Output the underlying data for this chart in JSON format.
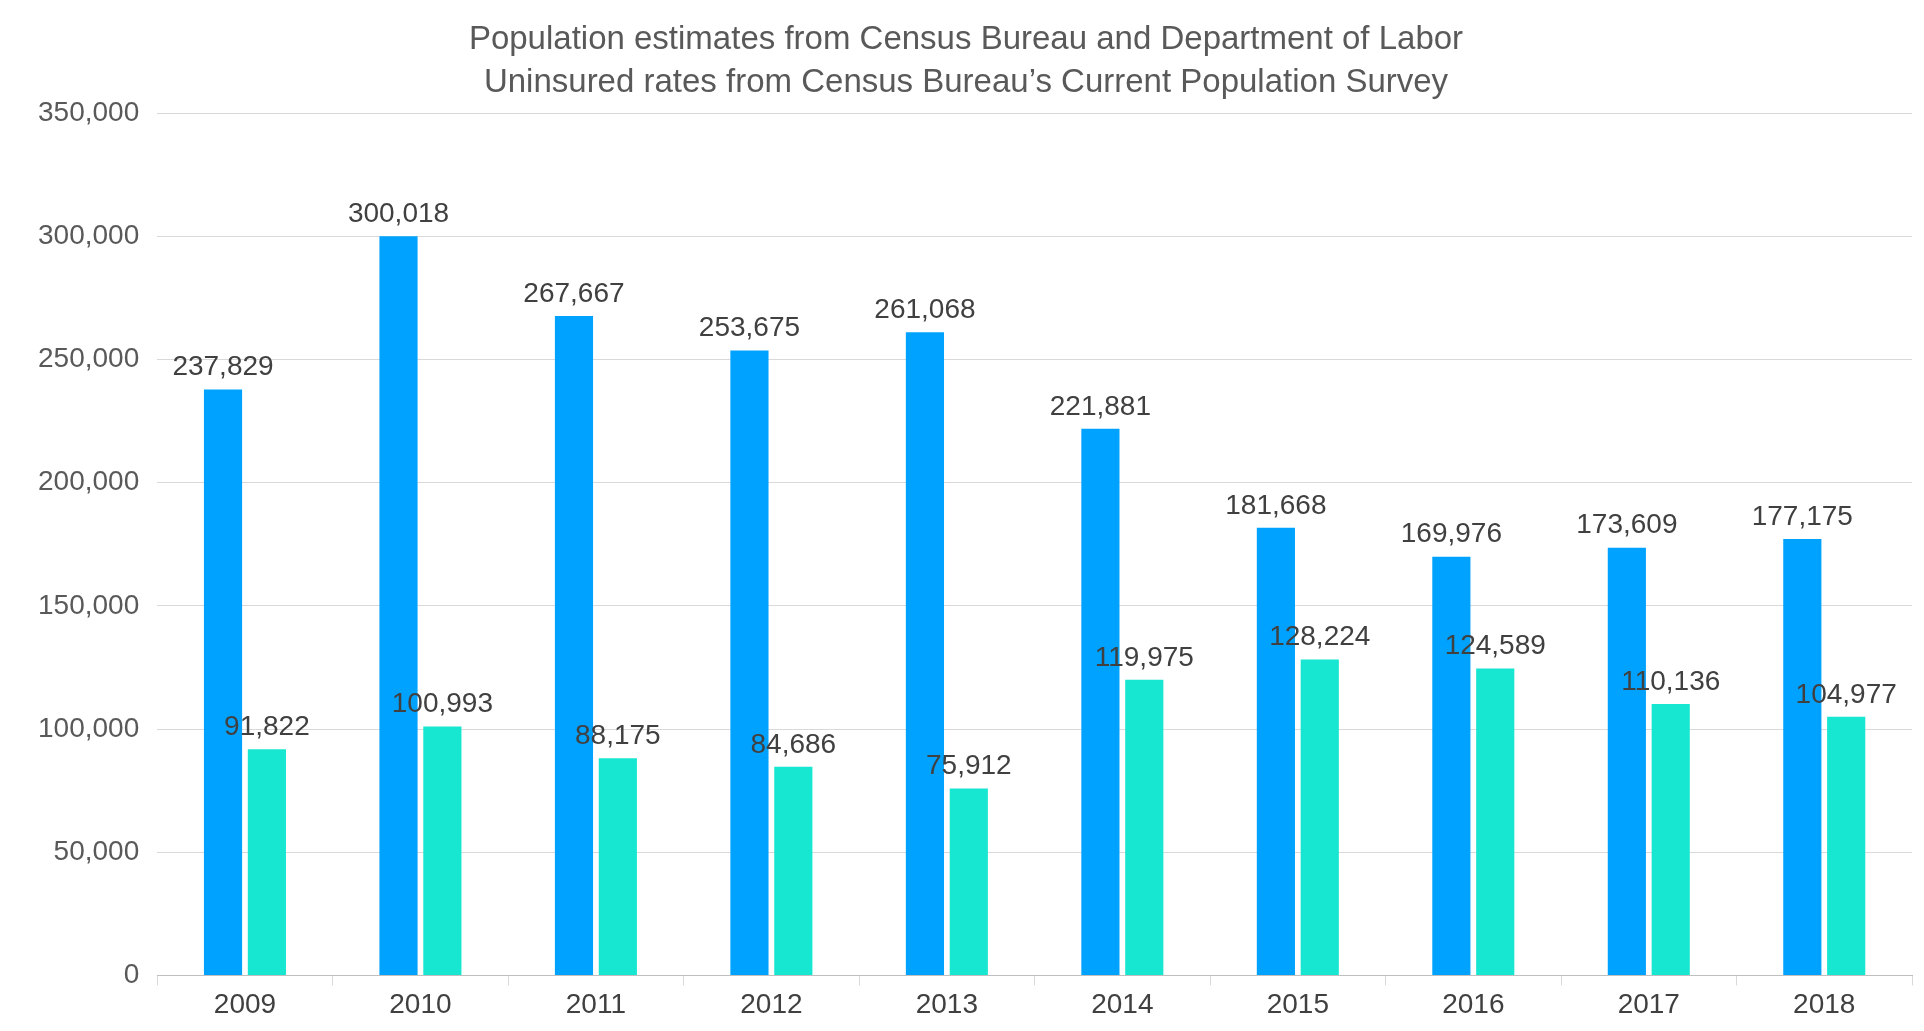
{
  "chart_data": {
    "type": "bar",
    "title": "Population estimates from Census Bureau and Department of Labor",
    "subtitle": "Uninsured rates from Census Bureau’s Current Population Survey",
    "categories": [
      "2009",
      "2010",
      "2011",
      "2012",
      "2013",
      "2014",
      "2015",
      "2016",
      "2017",
      "2018"
    ],
    "series": [
      {
        "color": "#00a2ff",
        "values": [
          237829,
          300018,
          267667,
          253675,
          261068,
          221881,
          181668,
          169976,
          173609,
          177175
        ],
        "value_labels": [
          "237,829",
          "300,018",
          "267,667",
          "253,675",
          "261,068",
          "221,881",
          "181,668",
          "169,976",
          "173,609",
          "177,175"
        ]
      },
      {
        "color": "#17e6d0",
        "values": [
          91822,
          100993,
          88175,
          84686,
          75912,
          119975,
          128224,
          124589,
          110136,
          104977
        ],
        "value_labels": [
          "91,822",
          "100,993",
          "88,175",
          "84,686",
          "75,912",
          "119,975",
          "128,224",
          "124,589",
          "110,136",
          "104,977"
        ]
      }
    ],
    "ylim": [
      0,
      350000
    ],
    "yticks": [
      0,
      {
        "value": 50000,
        "label": "50,000"
      },
      {
        "value": 100000,
        "label": "100,000"
      },
      {
        "value": 150000,
        "label": "150,000"
      },
      {
        "value": 200000,
        "label": "200,000"
      },
      {
        "value": 250000,
        "label": "250,000"
      },
      {
        "value": 300000,
        "label": "300,000"
      },
      {
        "value": 350000,
        "label": "350,000"
      }
    ],
    "grid": "y",
    "legend": false
  }
}
